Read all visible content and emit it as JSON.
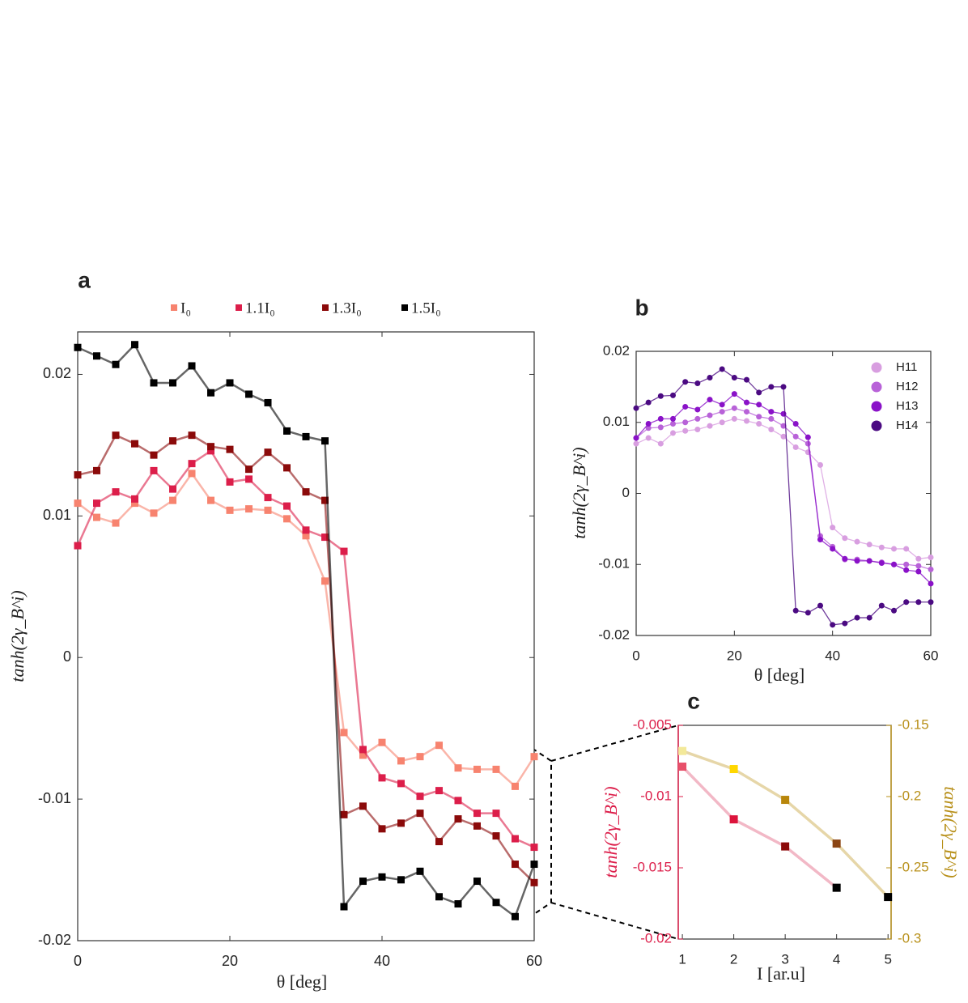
{
  "chart_data": [
    {
      "type": "line",
      "panel_label": "a",
      "x_label": "θ [deg]",
      "y_label": "tanh(2γ_B^i)",
      "legend_loc": "top",
      "x": [
        0,
        2.5,
        5,
        7.5,
        10,
        12.5,
        15,
        17.5,
        20,
        22.5,
        25,
        27.5,
        30,
        32.5,
        35,
        37.5,
        40,
        42.5,
        45,
        47.5,
        50,
        52.5,
        55,
        57.5,
        60
      ],
      "xlim": [
        0,
        60
      ],
      "xticks": [
        0,
        20,
        40,
        60
      ],
      "ylim": [
        -0.02,
        0.023
      ],
      "yticks": [
        -0.02,
        -0.01,
        0,
        0.01,
        0.02
      ],
      "series": [
        {
          "name": "I₀",
          "color": "#f7836f",
          "values": [
            0.0109,
            0.0099,
            0.0095,
            0.0109,
            0.0102,
            0.0111,
            0.013,
            0.0111,
            0.0104,
            0.0105,
            0.0104,
            0.0098,
            0.0086,
            0.0054,
            -0.0053,
            -0.0069,
            -0.006,
            -0.0073,
            -0.007,
            -0.0062,
            -0.0078,
            -0.0079,
            -0.0079,
            -0.0091,
            -0.007
          ]
        },
        {
          "name": "1.1I₀",
          "color": "#dc1e4a",
          "values": [
            0.0079,
            0.0109,
            0.0117,
            0.0112,
            0.0132,
            0.0119,
            0.0137,
            0.0146,
            0.0124,
            0.0126,
            0.0113,
            0.0107,
            0.009,
            0.0085,
            0.0075,
            -0.0065,
            -0.0085,
            -0.0089,
            -0.0098,
            -0.0094,
            -0.0101,
            -0.011,
            -0.011,
            -0.0128,
            -0.0134
          ]
        },
        {
          "name": "1.3I₀",
          "color": "#8b0a0a",
          "values": [
            0.0129,
            0.0132,
            0.0157,
            0.0151,
            0.0143,
            0.0153,
            0.0157,
            0.0149,
            0.0147,
            0.0133,
            0.0145,
            0.0134,
            0.0117,
            0.0111,
            -0.0111,
            -0.0105,
            -0.0121,
            -0.0117,
            -0.011,
            -0.013,
            -0.0114,
            -0.0119,
            -0.0126,
            -0.0146,
            -0.0159
          ]
        },
        {
          "name": "1.5I₀",
          "color": "#000000",
          "values": [
            0.0219,
            0.0213,
            0.0207,
            0.0221,
            0.0194,
            0.0194,
            0.0206,
            0.0187,
            0.0194,
            0.0186,
            0.018,
            0.016,
            0.0156,
            0.0153,
            -0.0176,
            -0.0158,
            -0.0155,
            -0.0157,
            -0.0151,
            -0.0169,
            -0.0174,
            -0.0158,
            -0.0173,
            -0.0183,
            -0.0146
          ]
        }
      ]
    },
    {
      "type": "line",
      "panel_label": "b",
      "x_label": "θ [deg]",
      "y_label": "tanh(2γ_B^i)",
      "legend_loc": "upper right",
      "x": [
        0,
        2.5,
        5,
        7.5,
        10,
        12.5,
        15,
        17.5,
        20,
        22.5,
        25,
        27.5,
        30,
        32.5,
        35,
        37.5,
        40,
        42.5,
        45,
        47.5,
        50,
        52.5,
        55,
        57.5,
        60
      ],
      "xlim": [
        0,
        60
      ],
      "xticks": [
        0,
        20,
        40,
        60
      ],
      "ylim": [
        -0.02,
        0.02
      ],
      "yticks": [
        -0.02,
        -0.01,
        0,
        0.01,
        0.02
      ],
      "series": [
        {
          "name": "H11",
          "color": "#d89ee0",
          "values": [
            0.007,
            0.0078,
            0.007,
            0.0085,
            0.0088,
            0.009,
            0.0095,
            0.01,
            0.0105,
            0.0102,
            0.0098,
            0.009,
            0.008,
            0.0065,
            0.0058,
            0.004,
            -0.0048,
            -0.0063,
            -0.0068,
            -0.0072,
            -0.0076,
            -0.0078,
            -0.0078,
            -0.0092,
            -0.009
          ]
        },
        {
          "name": "H12",
          "color": "#b862d8",
          "values": [
            0.0078,
            0.0092,
            0.0093,
            0.0098,
            0.01,
            0.0105,
            0.011,
            0.0115,
            0.012,
            0.0115,
            0.0108,
            0.0105,
            0.0095,
            0.008,
            0.007,
            -0.006,
            -0.0075,
            -0.0093,
            -0.0093,
            -0.0095,
            -0.0097,
            -0.01,
            -0.01,
            -0.0102,
            -0.0107
          ]
        },
        {
          "name": "H13",
          "color": "#8a12c8",
          "values": [
            0.0078,
            0.0098,
            0.0105,
            0.0105,
            0.0122,
            0.0118,
            0.0132,
            0.0125,
            0.014,
            0.0128,
            0.0125,
            0.0115,
            0.0112,
            0.0098,
            0.0079,
            -0.0065,
            -0.0078,
            -0.0092,
            -0.0095,
            -0.0095,
            -0.0098,
            -0.01,
            -0.0108,
            -0.011,
            -0.0127
          ]
        },
        {
          "name": "H14",
          "color": "#4b0a82",
          "values": [
            0.012,
            0.0128,
            0.0137,
            0.0138,
            0.0157,
            0.0155,
            0.0163,
            0.0175,
            0.0163,
            0.016,
            0.0142,
            0.015,
            0.015,
            -0.0165,
            -0.0168,
            -0.0158,
            -0.0185,
            -0.0183,
            -0.0175,
            -0.0175,
            -0.0158,
            -0.0165,
            -0.0153,
            -0.0153,
            -0.0153
          ]
        }
      ]
    },
    {
      "type": "line",
      "panel_label": "c",
      "x_label": "I [ar.u]",
      "y_label": "tanh(2γ_B^i)",
      "y2_label": "tanh(2γ_B^i)",
      "x": [
        1,
        2,
        3,
        4,
        5
      ],
      "xlim": [
        0.92,
        5.06
      ],
      "xticks": [
        1,
        2,
        3,
        4,
        5
      ],
      "ylim": [
        -0.02,
        -0.005
      ],
      "yticks": [
        -0.02,
        -0.015,
        -0.01,
        -0.005
      ],
      "y_color": "#dc1e4a",
      "y2lim": [
        -0.3,
        -0.15
      ],
      "y2ticks": [
        -0.3,
        -0.25,
        -0.2,
        -0.15
      ],
      "y2_color": "#b8901a",
      "series": [
        {
          "line_color": "#f2b8c6",
          "colors": [
            "#e8506a",
            "#dc143c",
            "#8b0a0a",
            "#000000",
            "#000000"
          ],
          "values": [
            -0.0079,
            -0.0116,
            -0.0135,
            -0.0164,
            null
          ]
        },
        {
          "axis": "y2",
          "line_color": "#e6d6a8",
          "colors": [
            "#f3e99a",
            "#ffd700",
            "#b8860b",
            "#8b4513",
            "#000000"
          ],
          "values": [
            -0.168,
            -0.1807,
            -0.2023,
            -0.233,
            -0.2705
          ]
        }
      ]
    }
  ]
}
